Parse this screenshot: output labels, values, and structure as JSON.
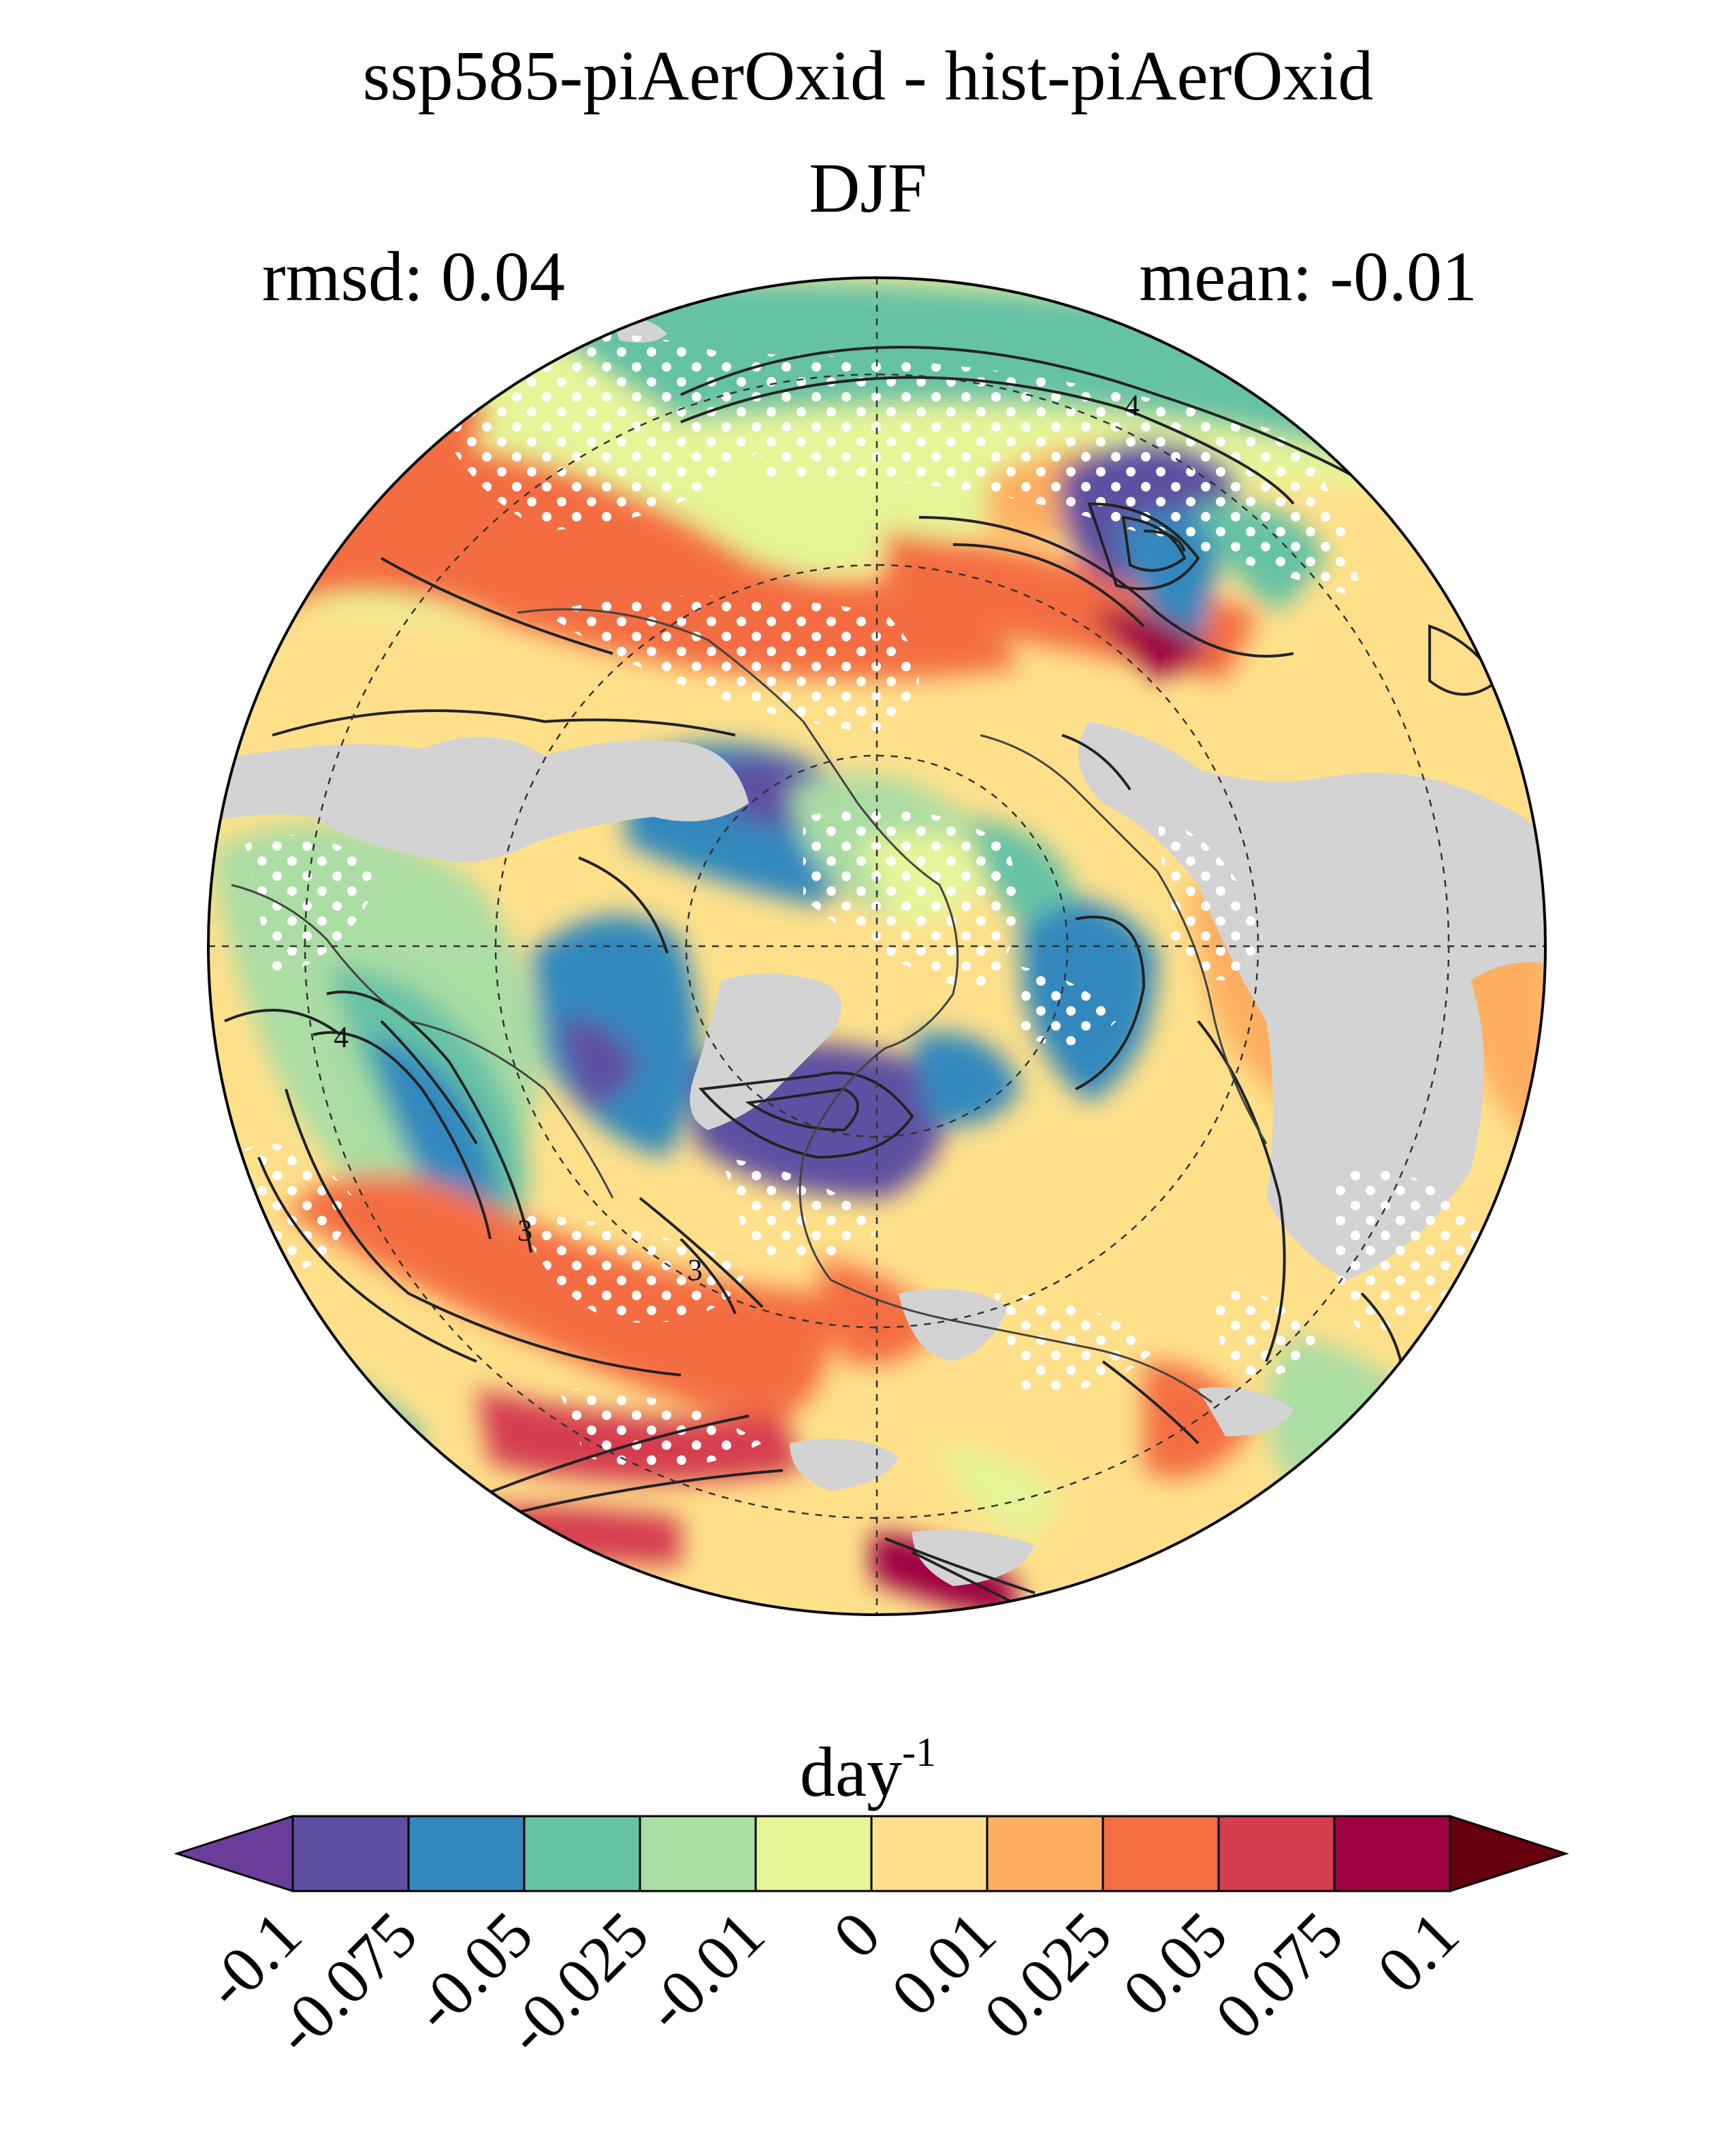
{
  "title": "ssp585-piAerOxid - hist-piAerOxid",
  "season": "DJF",
  "stats": {
    "rmsd": "rmsd: 0.04",
    "mean": "mean: -0.01"
  },
  "contour_labels": [
    "4",
    "4",
    "3",
    "3"
  ],
  "units": {
    "base": "day",
    "exponent": "-1"
  },
  "colorbar": {
    "levels": [
      "-0.1",
      "-0.075",
      "-0.05",
      "-0.025",
      "-0.01",
      "0",
      "0.01",
      "0.025",
      "0.05",
      "0.075",
      "0.1"
    ],
    "colors": [
      "#5e4fa2",
      "#3288bd",
      "#66c2a5",
      "#abdda4",
      "#e6f598",
      "#fee08b",
      "#fdae61",
      "#f46d43",
      "#d53e4f",
      "#9e0142"
    ],
    "under_color": "#6a3d9a",
    "over_color": "#67000d"
  },
  "palette": {
    "land_mask": "#d3d3d3",
    "stipple": "#ffffff",
    "contour": "#111111"
  }
}
